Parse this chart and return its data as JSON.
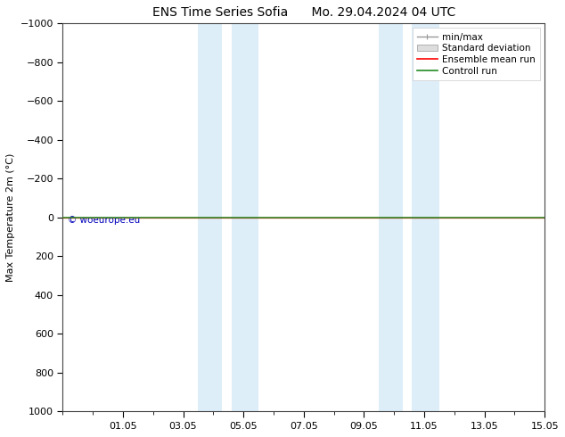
{
  "title_left": "ENS Time Series Sofia",
  "title_right": "Mo. 29.04.2024 04 UTC",
  "ylabel": "Max Temperature 2m (°C)",
  "ylim_bottom": 1000,
  "ylim_top": -1000,
  "yticks": [
    -1000,
    -800,
    -600,
    -400,
    -200,
    0,
    200,
    400,
    600,
    800,
    1000
  ],
  "xlim_min": 0.0,
  "xlim_max": 16.0,
  "xtick_labels": [
    "01.05",
    "03.05",
    "05.05",
    "07.05",
    "09.05",
    "11.05",
    "13.05",
    "15.05"
  ],
  "xtick_positions": [
    2,
    4,
    6,
    8,
    10,
    12,
    14,
    16
  ],
  "shaded_bands": [
    {
      "x_start": 4.5,
      "x_end": 5.3
    },
    {
      "x_start": 5.6,
      "x_end": 6.5
    },
    {
      "x_start": 10.5,
      "x_end": 11.3
    },
    {
      "x_start": 11.6,
      "x_end": 12.5
    }
  ],
  "shaded_color": "#ddeef8",
  "hline_y": 0,
  "hline_color_green": "#228B22",
  "hline_color_red": "#ff0000",
  "watermark": "© woeurope.eu",
  "watermark_color": "#0000bb",
  "background_color": "#ffffff",
  "figsize": [
    6.34,
    4.9
  ],
  "dpi": 100
}
